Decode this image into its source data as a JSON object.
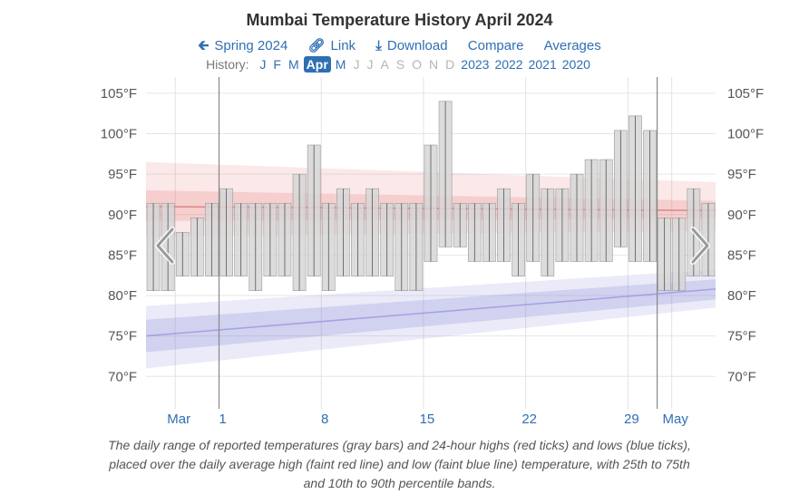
{
  "page_title": "Mumbai Temperature History April 2024",
  "nav": {
    "back": {
      "label": "Spring 2024",
      "icon": "arrow-left-icon"
    },
    "link": {
      "label": "Link",
      "icon": "link-icon"
    },
    "download": {
      "label": "Download",
      "icon": "download-icon"
    },
    "compare": {
      "label": "Compare"
    },
    "averages": {
      "label": "Averages"
    }
  },
  "history": {
    "label": "History:",
    "months": [
      {
        "label": "J",
        "state": "link"
      },
      {
        "label": "F",
        "state": "link"
      },
      {
        "label": "M",
        "state": "link"
      },
      {
        "label": "Apr",
        "state": "active"
      },
      {
        "label": "M",
        "state": "link"
      },
      {
        "label": "J",
        "state": "disabled"
      },
      {
        "label": "J",
        "state": "disabled"
      },
      {
        "label": "A",
        "state": "disabled"
      },
      {
        "label": "S",
        "state": "disabled"
      },
      {
        "label": "O",
        "state": "disabled"
      },
      {
        "label": "N",
        "state": "disabled"
      },
      {
        "label": "D",
        "state": "disabled"
      }
    ],
    "years": [
      "2023",
      "2022",
      "2021",
      "2020"
    ]
  },
  "caption": "The daily range of reported temperatures (gray bars) and 24-hour highs (red ticks) and lows (blue ticks), placed over the daily average high (faint red line) and low (faint blue line) temperature, with 25th to 75th and 10th to 90th percentile bands.",
  "colors": {
    "bar": "#d6d6d6",
    "bar_edge": "#555555",
    "high_band": "#e57373",
    "low_band": "#7b7bd6",
    "link": "#2f6fb3"
  },
  "chart_data": {
    "type": "area",
    "x_unit": "day",
    "x_range": [
      "2024-03-27",
      "2024-05-04"
    ],
    "ylim": [
      66,
      107
    ],
    "y_ticks": [
      "70°F",
      "75°F",
      "80°F",
      "85°F",
      "90°F",
      "95°F",
      "100°F",
      "105°F"
    ],
    "y_tick_values": [
      70,
      75,
      80,
      85,
      90,
      95,
      100,
      105
    ],
    "x_labels": [
      {
        "label": "Mar",
        "date": "2024-03-29"
      },
      {
        "label": "1",
        "date": "2024-04-01"
      },
      {
        "label": "8",
        "date": "2024-04-08"
      },
      {
        "label": "15",
        "date": "2024-04-15"
      },
      {
        "label": "22",
        "date": "2024-04-22"
      },
      {
        "label": "29",
        "date": "2024-04-29"
      },
      {
        "label": "May",
        "date": "2024-05-02"
      }
    ],
    "month_boundaries": [
      "2024-04-01",
      "2024-05-01"
    ],
    "avg_high": {
      "start": 91.0,
      "end": 90.5
    },
    "high_p25_p75": {
      "start": [
        89.2,
        93.0
      ],
      "end": [
        89.5,
        91.7
      ]
    },
    "high_p10_p90": {
      "start": [
        87.3,
        96.5
      ],
      "end": [
        88.0,
        94.0
      ]
    },
    "avg_low": {
      "start": 75.0,
      "end": 80.8
    },
    "low_p25_p75": {
      "start": [
        73.0,
        77.0
      ],
      "end": [
        79.5,
        82.0
      ]
    },
    "low_p10_p90": {
      "start": [
        71.0,
        78.7
      ],
      "end": [
        78.5,
        83.2
      ]
    },
    "daily_range": [
      {
        "date": "2024-03-27",
        "low": 80.6,
        "high": 91.4
      },
      {
        "date": "2024-03-28",
        "low": 80.6,
        "high": 91.4
      },
      {
        "date": "2024-03-29",
        "low": 82.4,
        "high": 87.8
      },
      {
        "date": "2024-03-30",
        "low": 82.4,
        "high": 89.6
      },
      {
        "date": "2024-03-31",
        "low": 82.4,
        "high": 91.4
      },
      {
        "date": "2024-04-01",
        "low": 82.4,
        "high": 93.2
      },
      {
        "date": "2024-04-02",
        "low": 82.4,
        "high": 91.4
      },
      {
        "date": "2024-04-03",
        "low": 80.6,
        "high": 91.4
      },
      {
        "date": "2024-04-04",
        "low": 82.4,
        "high": 91.4
      },
      {
        "date": "2024-04-05",
        "low": 82.4,
        "high": 91.4
      },
      {
        "date": "2024-04-06",
        "low": 80.6,
        "high": 95.0
      },
      {
        "date": "2024-04-07",
        "low": 82.4,
        "high": 98.6
      },
      {
        "date": "2024-04-08",
        "low": 80.6,
        "high": 91.4
      },
      {
        "date": "2024-04-09",
        "low": 82.4,
        "high": 93.2
      },
      {
        "date": "2024-04-10",
        "low": 82.4,
        "high": 91.4
      },
      {
        "date": "2024-04-11",
        "low": 82.4,
        "high": 93.2
      },
      {
        "date": "2024-04-12",
        "low": 82.4,
        "high": 91.4
      },
      {
        "date": "2024-04-13",
        "low": 80.6,
        "high": 91.4
      },
      {
        "date": "2024-04-14",
        "low": 80.6,
        "high": 91.4
      },
      {
        "date": "2024-04-15",
        "low": 84.2,
        "high": 98.6
      },
      {
        "date": "2024-04-16",
        "low": 86.0,
        "high": 104.0
      },
      {
        "date": "2024-04-17",
        "low": 86.0,
        "high": 91.4
      },
      {
        "date": "2024-04-18",
        "low": 84.2,
        "high": 91.4
      },
      {
        "date": "2024-04-19",
        "low": 84.2,
        "high": 91.4
      },
      {
        "date": "2024-04-20",
        "low": 84.2,
        "high": 93.2
      },
      {
        "date": "2024-04-21",
        "low": 82.4,
        "high": 91.4
      },
      {
        "date": "2024-04-22",
        "low": 84.2,
        "high": 95.0
      },
      {
        "date": "2024-04-23",
        "low": 82.4,
        "high": 93.2
      },
      {
        "date": "2024-04-24",
        "low": 84.2,
        "high": 93.2
      },
      {
        "date": "2024-04-25",
        "low": 84.2,
        "high": 95.0
      },
      {
        "date": "2024-04-26",
        "low": 84.2,
        "high": 96.8
      },
      {
        "date": "2024-04-27",
        "low": 84.2,
        "high": 96.8
      },
      {
        "date": "2024-04-28",
        "low": 86.0,
        "high": 100.4
      },
      {
        "date": "2024-04-29",
        "low": 84.2,
        "high": 102.2
      },
      {
        "date": "2024-04-30",
        "low": 84.2,
        "high": 100.4
      },
      {
        "date": "2024-05-01",
        "low": 80.6,
        "high": 89.6
      },
      {
        "date": "2024-05-02",
        "low": 80.6,
        "high": 89.6
      },
      {
        "date": "2024-05-03",
        "low": 82.4,
        "high": 93.2
      },
      {
        "date": "2024-05-04",
        "low": 82.4,
        "high": 91.4
      }
    ]
  }
}
